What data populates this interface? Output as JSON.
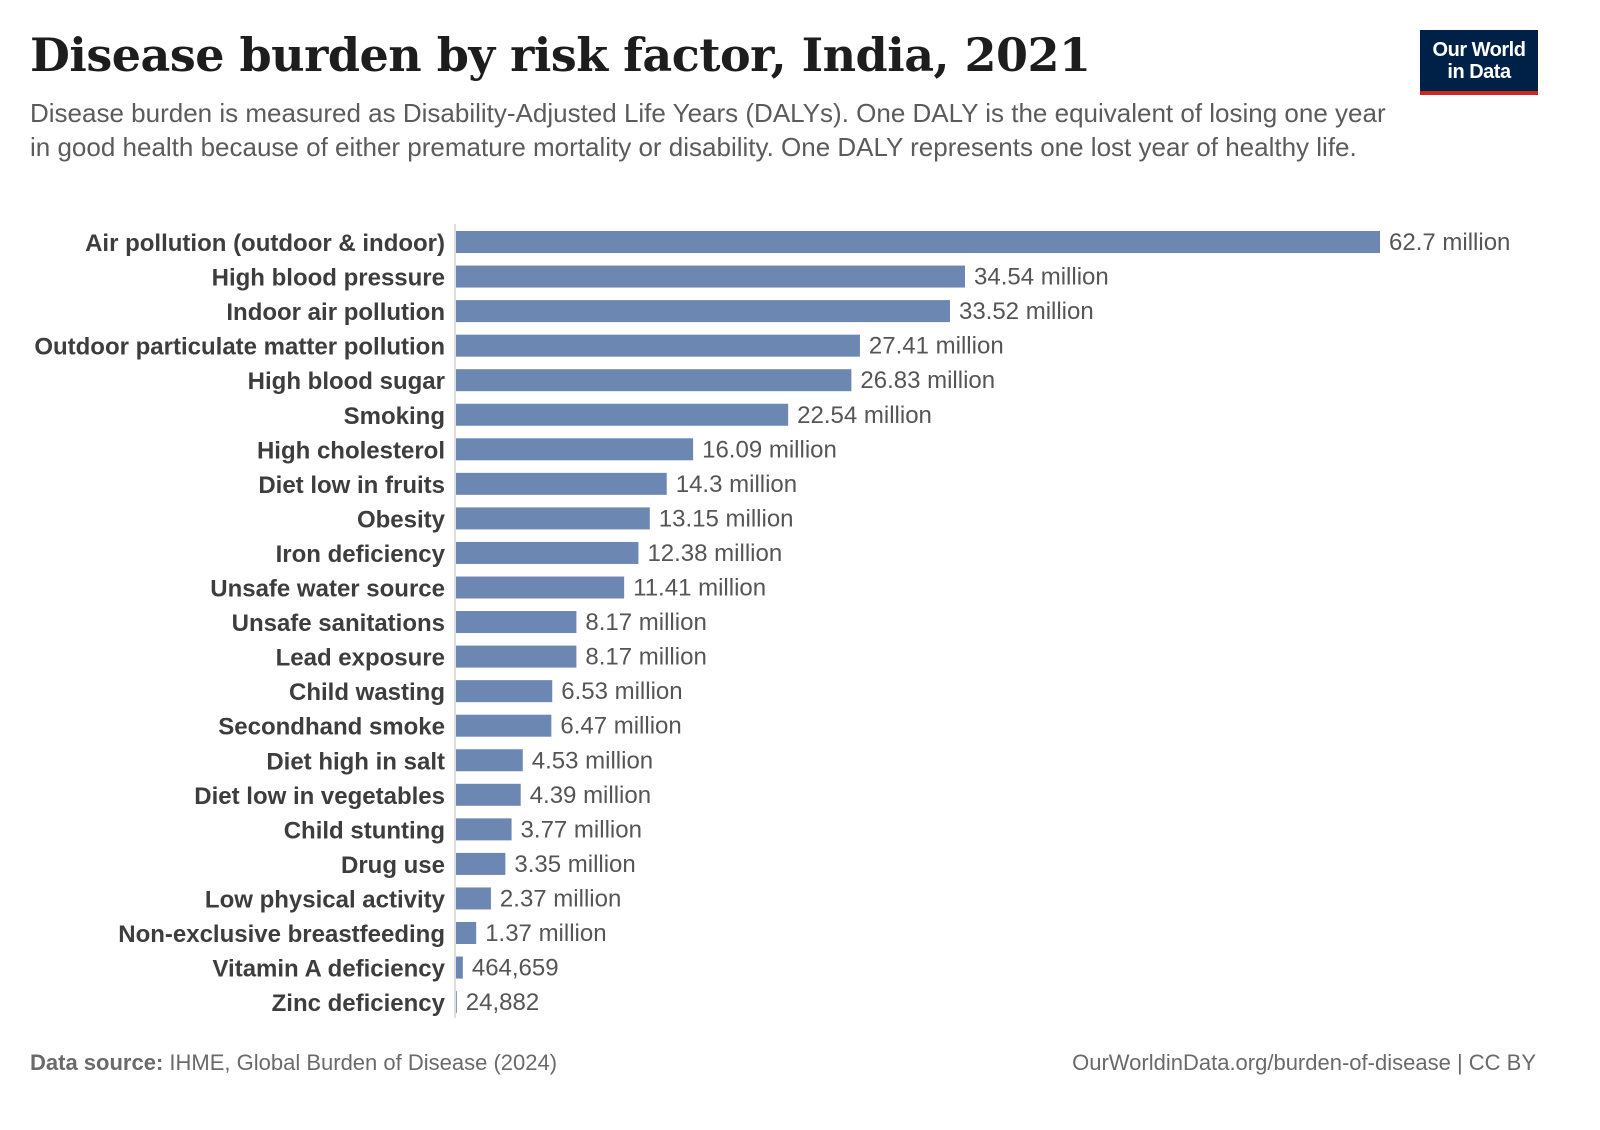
{
  "header": {
    "title": "Disease burden by risk factor, India, 2021",
    "subtitle": "Disease burden is measured as Disability-Adjusted Life Years (DALYs). One DALY is the equivalent of losing one year in good health because of either premature mortality or disability. One DALY represents one lost year of healthy life."
  },
  "logo": {
    "line1": "Our World",
    "line2": "in Data"
  },
  "footer": {
    "source_label": "Data source:",
    "source_text": "IHME, Global Burden of Disease (2024)",
    "url": "OurWorldinData.org/burden-of-disease",
    "license": "| CC BY"
  },
  "colors": {
    "bar": "#6d87b3",
    "logo_bg": "#002147",
    "logo_accent": "#ce261e"
  },
  "chart_data": {
    "type": "bar",
    "orientation": "horizontal",
    "title": "Disease burden by risk factor, India, 2021",
    "xlabel": "",
    "ylabel": "",
    "xlim": [
      0,
      62700000
    ],
    "categories": [
      "Air pollution (outdoor & indoor)",
      "High blood pressure",
      "Indoor air pollution",
      "Outdoor particulate matter pollution",
      "High blood sugar",
      "Smoking",
      "High cholesterol",
      "Diet low in fruits",
      "Obesity",
      "Iron deficiency",
      "Unsafe water source",
      "Unsafe sanitations",
      "Lead exposure",
      "Child wasting",
      "Secondhand smoke",
      "Diet high in salt",
      "Diet low in vegetables",
      "Child stunting",
      "Drug use",
      "Low physical activity",
      "Non-exclusive breastfeeding",
      "Vitamin A deficiency",
      "Zinc deficiency"
    ],
    "values": [
      62700000,
      34540000,
      33520000,
      27410000,
      26830000,
      22540000,
      16090000,
      14300000,
      13150000,
      12380000,
      11410000,
      8170000,
      8170000,
      6530000,
      6470000,
      4530000,
      4390000,
      3770000,
      3350000,
      2370000,
      1370000,
      464659,
      24882
    ],
    "value_labels": [
      "62.7 million",
      "34.54 million",
      "33.52 million",
      "27.41 million",
      "26.83 million",
      "22.54 million",
      "16.09 million",
      "14.3 million",
      "13.15 million",
      "12.38 million",
      "11.41 million",
      "8.17 million",
      "8.17 million",
      "6.53 million",
      "6.47 million",
      "4.53 million",
      "4.39 million",
      "3.77 million",
      "3.35 million",
      "2.37 million",
      "1.37 million",
      "464,659",
      "24,882"
    ]
  }
}
